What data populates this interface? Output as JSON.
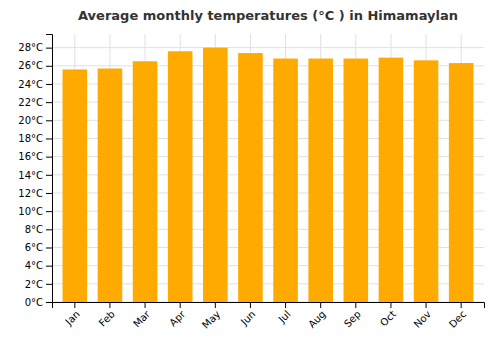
{
  "chart_data": {
    "type": "bar",
    "title": "Average monthly temperatures (°C ) in Himamaylan",
    "categories": [
      "Jan",
      "Feb",
      "Mar",
      "Apr",
      "May",
      "Jun",
      "Jul",
      "Aug",
      "Sep",
      "Oct",
      "Nov",
      "Dec"
    ],
    "values": [
      25.6,
      25.7,
      26.5,
      27.6,
      28.0,
      27.4,
      26.8,
      26.8,
      26.8,
      26.9,
      26.6,
      26.3
    ],
    "color": "#FFAA00",
    "ylim": [
      0,
      29.5
    ],
    "yticks": [
      {
        "value": 0,
        "label": "0°C"
      },
      {
        "value": 2,
        "label": "2°C"
      },
      {
        "value": 4,
        "label": "4°C"
      },
      {
        "value": 6,
        "label": "6°C"
      },
      {
        "value": 8,
        "label": "8°C"
      },
      {
        "value": 10,
        "label": "10°C"
      },
      {
        "value": 12,
        "label": "12°C"
      },
      {
        "value": 14,
        "label": "14°C"
      },
      {
        "value": 16,
        "label": "16°C"
      },
      {
        "value": 18,
        "label": "18°C"
      },
      {
        "value": 20,
        "label": "20°C"
      },
      {
        "value": 22,
        "label": "22°C"
      },
      {
        "value": 24,
        "label": "24°C"
      },
      {
        "value": 26,
        "label": "26°C"
      },
      {
        "value": 28,
        "label": "28°C"
      }
    ],
    "grid": true
  }
}
